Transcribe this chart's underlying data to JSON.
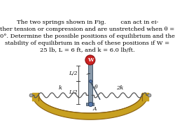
{
  "text_lines": [
    "The two springs shown in Fig.        can act in ei-",
    "ther tension or compression and are unstretched when θ =",
    "0°. Determine the possible positions of equilibrium and the",
    "stability of equilibrium in each of these positions if W =",
    "25 lb, L = 6 ft, and k = 6.0 lb/ft."
  ],
  "bg_color": "#ffffff",
  "text_color": "#000000",
  "wall_color": "#c8a020",
  "wall_edge": "#8a6010",
  "pole_color": "#8899aa",
  "pole_dark": "#445566",
  "spring_color": "#555555",
  "ball_color": "#cc2222",
  "ball_edge": "#881111",
  "pin_color": "#5577aa",
  "pin_edge": "#223355",
  "label_k": "k",
  "label_2k": "2k",
  "label_L2": "L/2",
  "label_theta": "θ",
  "label_W": "W",
  "label_A": "A"
}
